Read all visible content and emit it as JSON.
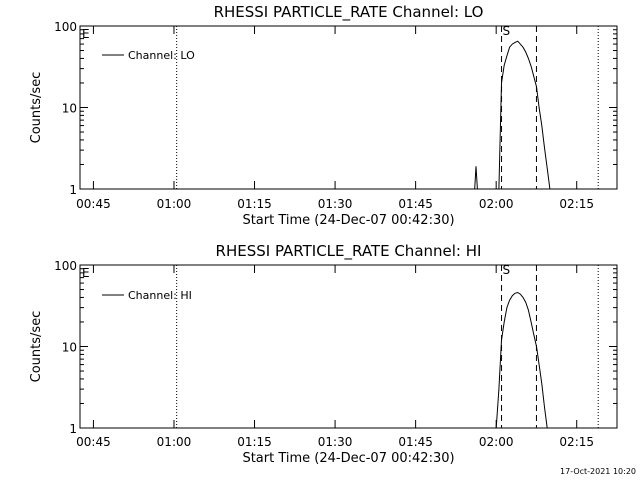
{
  "footer": {
    "timestamp": "17-Oct-2021 10:20"
  },
  "chart_data": [
    {
      "type": "line",
      "title": "RHESSI PARTICLE_RATE Channel: LO",
      "xlabel": "Start Time (24-Dec-07 00:42:30)",
      "ylabel": "Counts/sec",
      "y_scale": "log",
      "xlim": [
        "00:42:30",
        "02:22:30"
      ],
      "ylim": [
        1,
        100
      ],
      "x_ticks": [
        "00:45",
        "01:00",
        "01:15",
        "01:30",
        "01:45",
        "02:00",
        "02:15"
      ],
      "y_ticks": [
        "1",
        "10",
        "100"
      ],
      "grid": false,
      "legend_position": "top-left",
      "series": [
        {
          "name": "Channel: LO",
          "x": [
            "01:56:00",
            "01:56:15",
            "01:56:30",
            "02:00:30",
            "02:01:00",
            "02:01:30",
            "02:02:00",
            "02:02:30",
            "02:03:00",
            "02:03:30",
            "02:04:00",
            "02:04:30",
            "02:05:00",
            "02:05:30",
            "02:06:00",
            "02:06:30",
            "02:07:00",
            "02:07:30",
            "02:08:00",
            "02:08:30",
            "02:09:00",
            "02:09:30",
            "02:10:00"
          ],
          "y": [
            1,
            1.9,
            1,
            1,
            20,
            33,
            43,
            55,
            60,
            63,
            65,
            60,
            55,
            48,
            40,
            32,
            24,
            18,
            10,
            6,
            3.2,
            1.8,
            1
          ]
        }
      ],
      "annotations": [
        {
          "text": "E",
          "x": "00:43:00",
          "style": "left-edge label"
        },
        {
          "text": "S",
          "x": "02:01:00",
          "style": "dashed vertical line"
        },
        {
          "x": "02:07:30",
          "style": "dashed vertical line"
        },
        {
          "x": "01:00:30",
          "style": "dotted vertical line"
        },
        {
          "x": "02:19:00",
          "style": "dotted vertical line"
        }
      ]
    },
    {
      "type": "line",
      "title": "RHESSI PARTICLE_RATE Channel: HI",
      "xlabel": "Start Time (24-Dec-07 00:42:30)",
      "ylabel": "Counts/sec",
      "y_scale": "log",
      "xlim": [
        "00:42:30",
        "02:22:30"
      ],
      "ylim": [
        1,
        100
      ],
      "x_ticks": [
        "00:45",
        "01:00",
        "01:15",
        "01:30",
        "01:45",
        "02:00",
        "02:15"
      ],
      "y_ticks": [
        "1",
        "10",
        "100"
      ],
      "grid": false,
      "legend_position": "top-left",
      "series": [
        {
          "name": "Channel: HI",
          "x": [
            "02:00:00",
            "02:00:30",
            "02:01:00",
            "02:01:30",
            "02:02:00",
            "02:02:30",
            "02:03:00",
            "02:03:30",
            "02:04:00",
            "02:04:30",
            "02:05:00",
            "02:05:30",
            "02:06:00",
            "02:06:30",
            "02:07:00",
            "02:07:30",
            "02:08:00",
            "02:08:30",
            "02:09:00",
            "02:09:30"
          ],
          "y": [
            1,
            3,
            12,
            20,
            30,
            37,
            42,
            45,
            46,
            44,
            40,
            35,
            28,
            20,
            14,
            10,
            6,
            3.5,
            1.8,
            1
          ]
        }
      ],
      "annotations": [
        {
          "text": "E",
          "x": "00:43:00",
          "style": "left-edge label"
        },
        {
          "text": "S",
          "x": "02:01:00",
          "style": "dashed vertical line"
        },
        {
          "x": "02:07:30",
          "style": "dashed vertical line"
        },
        {
          "x": "01:00:30",
          "style": "dotted vertical line"
        },
        {
          "x": "02:19:00",
          "style": "dotted vertical line"
        }
      ]
    }
  ]
}
